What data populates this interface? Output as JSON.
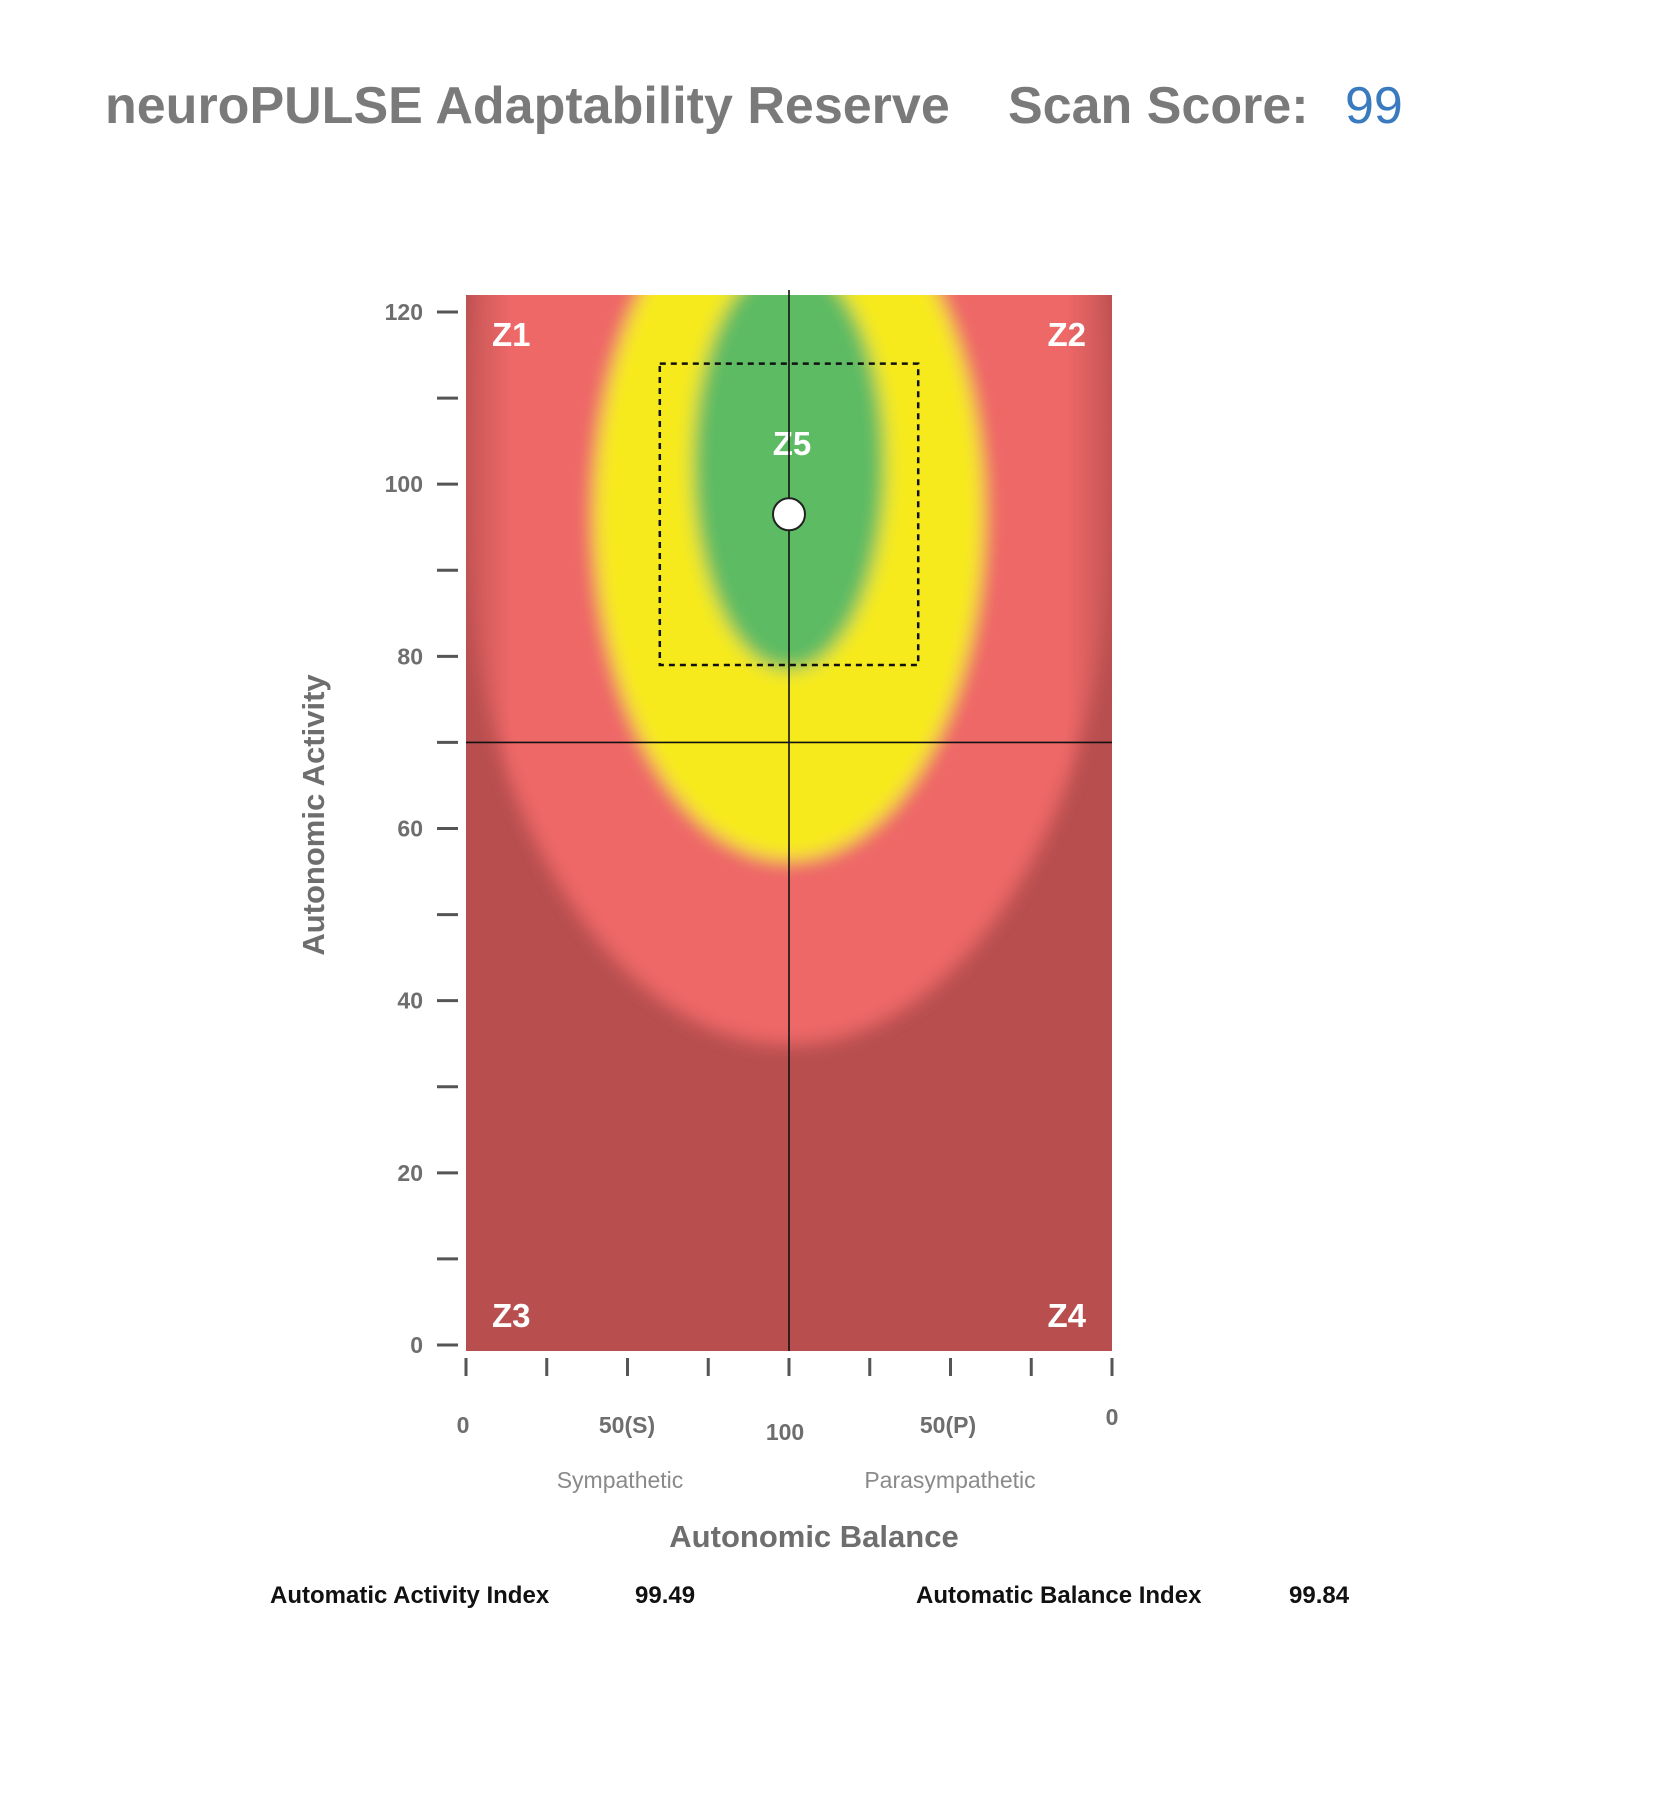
{
  "header": {
    "title": "neuroPULSE Adaptability Reserve",
    "score_label": "Scan Score:",
    "score_value": "99"
  },
  "colors": {
    "dark_red": "#b84e4e",
    "light_red": "#ee6767",
    "yellow": "#f6ea1e",
    "green": "#5dbb63",
    "score_blue": "#3a7bbf"
  },
  "chart_data": {
    "type": "heatmap",
    "title": "",
    "xlabel": "Autonomic Balance",
    "ylabel": "Autonomic Activity",
    "ylim": [
      0,
      120
    ],
    "y_tick_labels": [
      "0",
      "20",
      "40",
      "60",
      "80",
      "100",
      "120"
    ],
    "y_ticks": [
      0,
      10,
      20,
      30,
      40,
      50,
      60,
      70,
      80,
      90,
      100,
      110,
      120
    ],
    "x_tick_labels": [
      "0",
      "50(S)",
      "100",
      "50(P)",
      "0"
    ],
    "x_side_labels": [
      "Sympathetic",
      "Parasympathetic"
    ],
    "zones": [
      "Z1",
      "Z2",
      "Z3",
      "Z4",
      "Z5"
    ],
    "crosshair": {
      "balance": 100,
      "activity": 70
    },
    "target_box": {
      "balance_range": [
        60,
        140
      ],
      "activity_range": [
        79,
        114
      ]
    },
    "point": {
      "balance": 100,
      "activity": 96.5
    }
  },
  "indices": {
    "activity_label": "Automatic Activity Index",
    "activity_value": "99.49",
    "balance_label": "Automatic Balance Index",
    "balance_value": "99.84"
  }
}
